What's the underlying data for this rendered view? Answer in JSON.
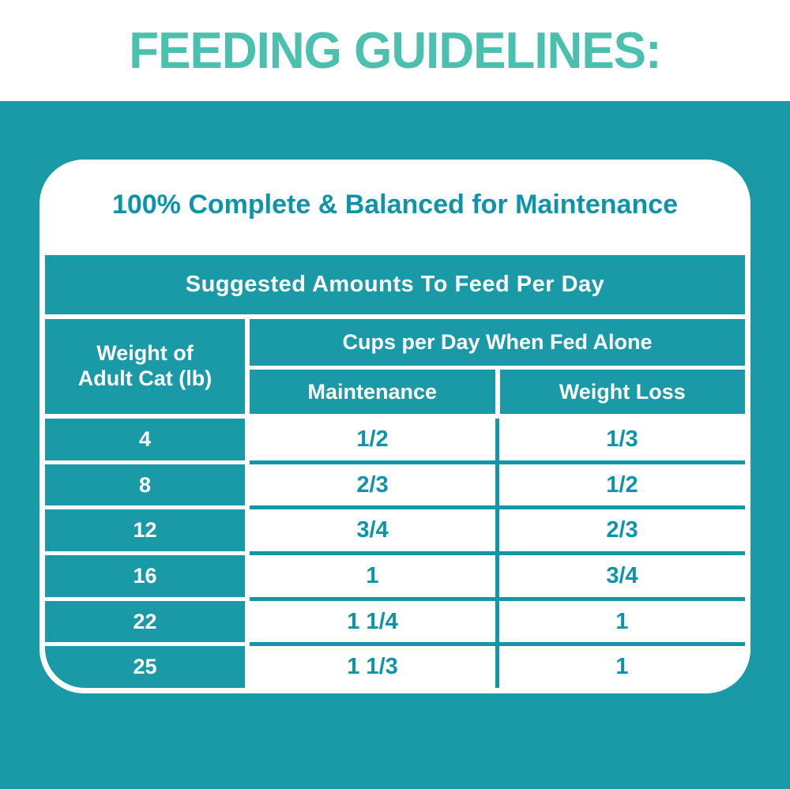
{
  "header": {
    "title": "FEEDING GUIDELINES:"
  },
  "card": {
    "title": "100% Complete & Balanced for Maintenance",
    "table": {
      "banner": "Suggested Amounts To Feed Per Day",
      "weight_header": "Weight of\nAdult Cat (lb)",
      "cups_header": "Cups per Day When Fed Alone",
      "sub_headers": [
        "Maintenance",
        "Weight Loss"
      ],
      "rows": [
        {
          "weight": "4",
          "maintenance": "1/2",
          "weight_loss": "1/3"
        },
        {
          "weight": "8",
          "maintenance": "2/3",
          "weight_loss": "1/2"
        },
        {
          "weight": "12",
          "maintenance": "3/4",
          "weight_loss": "2/3"
        },
        {
          "weight": "16",
          "maintenance": "1",
          "weight_loss": "3/4"
        },
        {
          "weight": "22",
          "maintenance": "1 1/4",
          "weight_loss": "1"
        },
        {
          "weight": "25",
          "maintenance": "1 1/3",
          "weight_loss": "1"
        }
      ]
    }
  },
  "colors": {
    "teal_background": "#1A9AA6",
    "teal_divider": "#1496A6",
    "heading_teal": "#4BC0AE",
    "text_teal": "#0E94A8",
    "white": "#FFFFFF"
  }
}
